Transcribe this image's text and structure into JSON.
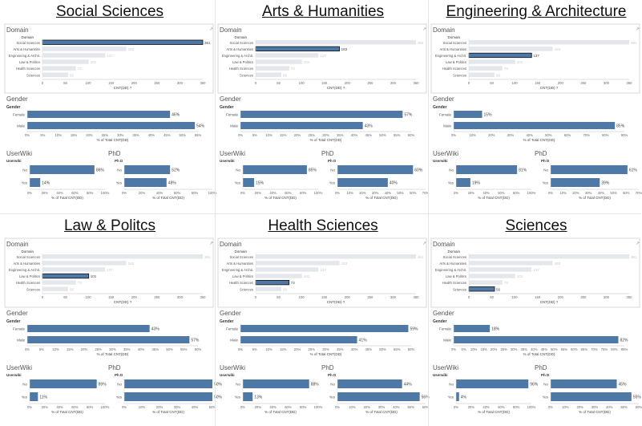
{
  "labels": {
    "domain": "Domain",
    "domain_header": "Domain",
    "gender": "Gender",
    "gender_header": "Gender",
    "userwiki": "UserWiki",
    "userwiki_header": "Userwiki",
    "phd": "PhD",
    "phd_header": "Ph D",
    "count_axis": "CNT(DD) ?",
    "pct_axis": "% of Total CNT(DD)"
  },
  "chart_data": [
    {
      "title": "Social Sciences",
      "type": "bar",
      "domain": {
        "categories": [
          "Social Sciences",
          "Arts & Humanities",
          "Engineering & Archit.",
          "Law & Politics",
          "Health Sciences",
          "Sciences"
        ],
        "values": [
          361,
          183,
          137,
          101,
          73,
          56
        ],
        "highlight": 0,
        "xlim": [
          0,
          350
        ],
        "xticks": [
          0,
          50,
          100,
          150,
          200,
          250,
          300,
          350
        ]
      },
      "gender": {
        "categories": [
          "Female",
          "Male"
        ],
        "values": [
          46,
          54
        ],
        "xlim": [
          0,
          55
        ],
        "xticks": [
          0,
          5,
          10,
          15,
          20,
          25,
          30,
          35,
          40,
          45,
          50,
          55
        ]
      },
      "userwiki": {
        "categories": [
          "No",
          "Yes"
        ],
        "values": [
          86,
          14
        ],
        "xlim": [
          0,
          100
        ],
        "xticks": [
          0,
          20,
          40,
          60,
          80,
          100
        ]
      },
      "phd": {
        "categories": [
          "No",
          "Yes"
        ],
        "values": [
          52,
          48
        ],
        "xlim": [
          0,
          100
        ],
        "xticks": [
          0,
          20,
          40,
          60,
          80,
          100
        ]
      }
    },
    {
      "title": "Arts & Humanities",
      "type": "bar",
      "domain": {
        "categories": [
          "Social Sciences",
          "Arts & Humanities",
          "Engineering & Archit.",
          "Law & Politics",
          "Health Sciences",
          "Sciences"
        ],
        "values": [
          361,
          183,
          137,
          101,
          73,
          56
        ],
        "highlight": 1,
        "xlim": [
          0,
          350
        ],
        "xticks": [
          0,
          50,
          100,
          150,
          200,
          250,
          300,
          350
        ]
      },
      "gender": {
        "categories": [
          "Female",
          "Male"
        ],
        "values": [
          57,
          43
        ],
        "xlim": [
          0,
          60
        ],
        "xticks": [
          0,
          5,
          10,
          15,
          20,
          25,
          30,
          35,
          40,
          45,
          50,
          55,
          60
        ]
      },
      "userwiki": {
        "categories": [
          "No",
          "Yes"
        ],
        "values": [
          85,
          15
        ],
        "xlim": [
          0,
          100
        ],
        "xticks": [
          0,
          20,
          40,
          60,
          80,
          100
        ]
      },
      "phd": {
        "categories": [
          "No",
          "Yes"
        ],
        "values": [
          60,
          40
        ],
        "xlim": [
          0,
          70
        ],
        "xticks": [
          0,
          10,
          20,
          30,
          40,
          50,
          60,
          70
        ]
      }
    },
    {
      "title": "Engineering & Architecture",
      "type": "bar",
      "domain": {
        "categories": [
          "Social Sciences",
          "Arts & Humanities",
          "Engineering & Archit.",
          "Law & Politics",
          "Health Sciences",
          "Sciences"
        ],
        "values": [
          361,
          183,
          137,
          101,
          73,
          56
        ],
        "highlight": 2,
        "xlim": [
          0,
          350
        ],
        "xticks": [
          0,
          50,
          100,
          150,
          200,
          250,
          300,
          350
        ]
      },
      "gender": {
        "categories": [
          "Female",
          "Male"
        ],
        "values": [
          15,
          85
        ],
        "xlim": [
          0,
          90
        ],
        "xticks": [
          0,
          10,
          20,
          30,
          40,
          50,
          60,
          70,
          80,
          90
        ]
      },
      "userwiki": {
        "categories": [
          "No",
          "Yes"
        ],
        "values": [
          81,
          19
        ],
        "xlim": [
          0,
          100
        ],
        "xticks": [
          0,
          20,
          40,
          60,
          80,
          100
        ]
      },
      "phd": {
        "categories": [
          "No",
          "Yes"
        ],
        "values": [
          61,
          39
        ],
        "xlim": [
          0,
          70
        ],
        "xticks": [
          0,
          10,
          20,
          30,
          40,
          50,
          60,
          70
        ]
      }
    },
    {
      "title": "Law & Politcs",
      "type": "bar",
      "domain": {
        "categories": [
          "Social Sciences",
          "Arts & Humanities",
          "Engineering & Archit.",
          "Law & Politics",
          "Health Sciences",
          "Sciences"
        ],
        "values": [
          361,
          183,
          137,
          101,
          73,
          56
        ],
        "highlight": 3,
        "xlim": [
          0,
          350
        ],
        "xticks": [
          0,
          50,
          100,
          150,
          200,
          250,
          300,
          350
        ]
      },
      "gender": {
        "categories": [
          "Female",
          "Male"
        ],
        "values": [
          43,
          57
        ],
        "xlim": [
          0,
          60
        ],
        "xticks": [
          0,
          5,
          10,
          15,
          20,
          25,
          30,
          35,
          40,
          45,
          50,
          55,
          60
        ]
      },
      "userwiki": {
        "categories": [
          "No",
          "Yes"
        ],
        "values": [
          89,
          11
        ],
        "xlim": [
          0,
          100
        ],
        "xticks": [
          0,
          20,
          40,
          60,
          80,
          100
        ]
      },
      "phd": {
        "categories": [
          "No",
          "Yes"
        ],
        "values": [
          50,
          50
        ],
        "xlim": [
          0,
          50
        ],
        "xticks": [
          0,
          10,
          20,
          30,
          40,
          50
        ]
      }
    },
    {
      "title": "Health Sciences",
      "type": "bar",
      "domain": {
        "categories": [
          "Social Sciences",
          "Arts & Humanities",
          "Engineering & Archit.",
          "Law & Politics",
          "Health Sciences",
          "Sciences"
        ],
        "values": [
          361,
          183,
          137,
          101,
          73,
          56
        ],
        "highlight": 4,
        "xlim": [
          0,
          350
        ],
        "xticks": [
          0,
          50,
          100,
          150,
          200,
          250,
          300,
          350
        ]
      },
      "gender": {
        "categories": [
          "Female",
          "Male"
        ],
        "values": [
          59,
          41
        ],
        "xlim": [
          0,
          60
        ],
        "xticks": [
          0,
          5,
          10,
          15,
          20,
          25,
          30,
          35,
          40,
          45,
          50,
          55,
          60
        ]
      },
      "userwiki": {
        "categories": [
          "No",
          "Yes"
        ],
        "values": [
          88,
          13
        ],
        "xlim": [
          0,
          100
        ],
        "xticks": [
          0,
          20,
          40,
          60,
          80,
          100
        ]
      },
      "phd": {
        "categories": [
          "No",
          "Yes"
        ],
        "values": [
          44,
          56
        ],
        "xlim": [
          0,
          60
        ],
        "xticks": [
          0,
          10,
          20,
          30,
          40,
          50,
          60
        ]
      }
    },
    {
      "title": "Sciences",
      "type": "bar",
      "domain": {
        "categories": [
          "Social Sciences",
          "Arts & Humanities",
          "Engineering & Archit.",
          "Law & Politics",
          "Health Sciences",
          "Sciences"
        ],
        "values": [
          361,
          183,
          137,
          101,
          73,
          56
        ],
        "highlight": 5,
        "xlim": [
          0,
          350
        ],
        "xticks": [
          0,
          50,
          100,
          150,
          200,
          250,
          300,
          350
        ]
      },
      "gender": {
        "categories": [
          "Female",
          "Male"
        ],
        "values": [
          18,
          82
        ],
        "xlim": [
          0,
          85
        ],
        "xticks": [
          0,
          5,
          10,
          15,
          20,
          25,
          30,
          35,
          40,
          45,
          50,
          55,
          60,
          65,
          70,
          75,
          80,
          85
        ]
      },
      "userwiki": {
        "categories": [
          "No",
          "Yes"
        ],
        "values": [
          96,
          4
        ],
        "xlim": [
          0,
          100
        ],
        "xticks": [
          0,
          20,
          40,
          60,
          80,
          100
        ]
      },
      "phd": {
        "categories": [
          "No",
          "Yes"
        ],
        "values": [
          45,
          55
        ],
        "xlim": [
          0,
          60
        ],
        "xticks": [
          0,
          10,
          20,
          30,
          40,
          50,
          60
        ]
      }
    }
  ]
}
